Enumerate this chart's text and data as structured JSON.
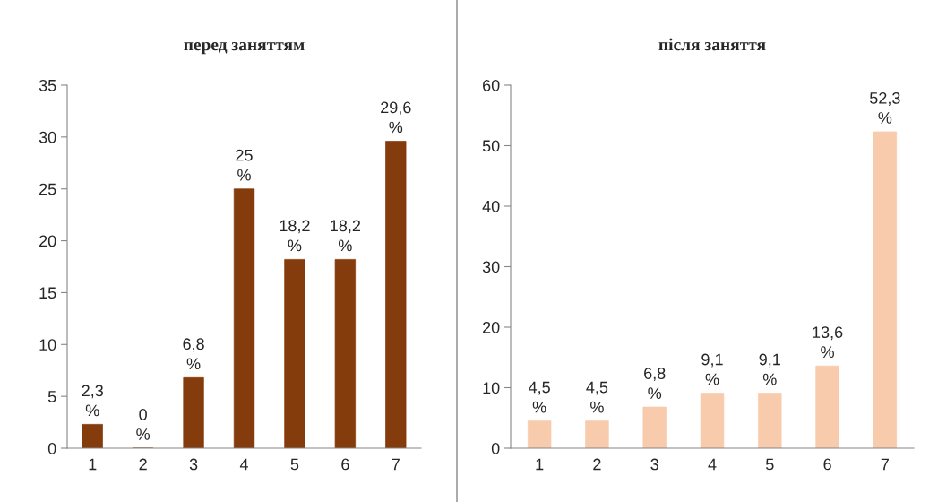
{
  "chart_data": [
    {
      "type": "bar",
      "title": "перед заняттям",
      "categories": [
        "1",
        "2",
        "3",
        "4",
        "5",
        "6",
        "7"
      ],
      "values": [
        2.3,
        0,
        6.8,
        25,
        18.2,
        18.2,
        29.6
      ],
      "color": "#843c0c",
      "ylim": [
        0,
        35
      ],
      "yticks": [
        0,
        5,
        10,
        15,
        20,
        25,
        30,
        35
      ],
      "value_labels": [
        "2,3 %",
        "0 %",
        "6,8 %",
        "25 %",
        "18,2 %",
        "18,2 %",
        "29,6 %"
      ],
      "grid": false,
      "legend": false
    },
    {
      "type": "bar",
      "title": "після заняття",
      "categories": [
        "1",
        "2",
        "3",
        "4",
        "5",
        "6",
        "7"
      ],
      "values": [
        4.5,
        4.5,
        6.8,
        9.1,
        9.1,
        13.6,
        52.3
      ],
      "color": "#f8cbad",
      "ylim": [
        0,
        60
      ],
      "yticks": [
        0,
        10,
        20,
        30,
        40,
        50,
        60
      ],
      "value_labels": [
        "4,5 %",
        "4,5 %",
        "6,8 %",
        "9,1 %",
        "9,1 %",
        "13,6 %",
        "52,3 %"
      ],
      "grid": false,
      "legend": false
    }
  ]
}
